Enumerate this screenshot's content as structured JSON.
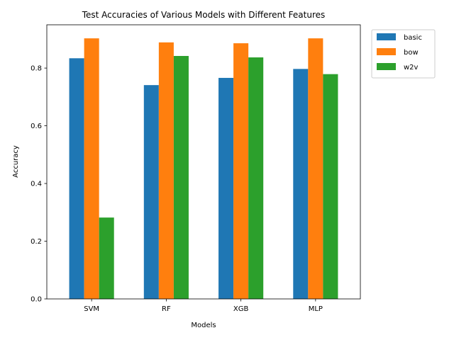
{
  "chart_data": {
    "type": "bar",
    "title": "Test Accuracies of Various Models with Different Features",
    "xlabel": "Models",
    "ylabel": "Accuracy",
    "categories": [
      "SVM",
      "RF",
      "XGB",
      "MLP"
    ],
    "series": [
      {
        "name": "basic",
        "color": "#1f77b4",
        "values": [
          0.834,
          0.741,
          0.766,
          0.797
        ]
      },
      {
        "name": "bow",
        "color": "#ff7f0e",
        "values": [
          0.903,
          0.889,
          0.886,
          0.903
        ]
      },
      {
        "name": "w2v",
        "color": "#2ca02c",
        "values": [
          0.282,
          0.842,
          0.837,
          0.779
        ]
      }
    ],
    "ylim": [
      0,
      0.95
    ],
    "yticks": [
      "0.0",
      "0.2",
      "0.4",
      "0.6",
      "0.8"
    ],
    "grid": false,
    "legend_position": "outside-top-right"
  }
}
